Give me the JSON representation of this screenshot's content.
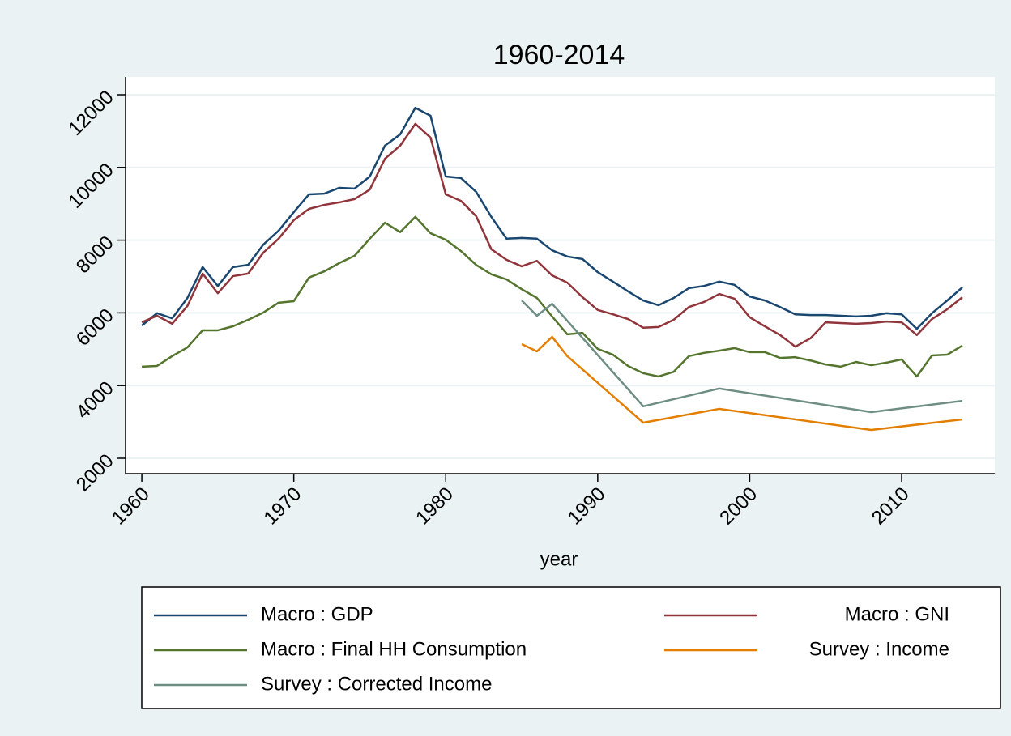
{
  "chart_data": {
    "type": "line",
    "title": "1960-2014",
    "x_label": "year",
    "x": [
      1960,
      1961,
      1962,
      1963,
      1964,
      1965,
      1966,
      1967,
      1968,
      1969,
      1970,
      1971,
      1972,
      1973,
      1974,
      1975,
      1976,
      1977,
      1978,
      1979,
      1980,
      1981,
      1982,
      1983,
      1984,
      1985,
      1986,
      1987,
      1988,
      1989,
      1990,
      1991,
      1992,
      1993,
      1994,
      1995,
      1996,
      1997,
      1998,
      1999,
      2000,
      2001,
      2002,
      2003,
      2004,
      2005,
      2006,
      2007,
      2008,
      2009,
      2010,
      2011,
      2012,
      2013,
      2014
    ],
    "series": [
      {
        "name": "Macro : GDP",
        "color": "#1a476f",
        "values": [
          5650,
          5990,
          5850,
          6410,
          7260,
          6740,
          7260,
          7320,
          7880,
          8260,
          8770,
          9260,
          9280,
          9440,
          9420,
          9750,
          10600,
          10910,
          11640,
          11420,
          9750,
          9710,
          9330,
          8640,
          8040,
          8060,
          8040,
          7720,
          7550,
          7480,
          7120,
          6860,
          6590,
          6340,
          6210,
          6410,
          6680,
          6740,
          6860,
          6770,
          6450,
          6340,
          6160,
          5960,
          5940,
          5940,
          5920,
          5900,
          5920,
          5990,
          5960,
          5560,
          5990,
          6340,
          6700
        ]
      },
      {
        "name": "Macro : GNI",
        "color": "#90353b",
        "values": [
          5740,
          5920,
          5700,
          6190,
          7080,
          6540,
          7010,
          7080,
          7660,
          8040,
          8550,
          8860,
          8970,
          9040,
          9130,
          9390,
          10240,
          10600,
          11200,
          10820,
          9260,
          9080,
          8660,
          7750,
          7460,
          7280,
          7430,
          7030,
          6830,
          6430,
          6080,
          5960,
          5830,
          5590,
          5610,
          5810,
          6160,
          6300,
          6520,
          6390,
          5880,
          5630,
          5390,
          5070,
          5300,
          5740,
          5720,
          5700,
          5720,
          5760,
          5740,
          5390,
          5830,
          6100,
          6430
        ]
      },
      {
        "name": "Macro : Final HH Consumption",
        "color": "#55752f",
        "values": [
          4520,
          4540,
          4810,
          5050,
          5520,
          5520,
          5630,
          5810,
          6010,
          6280,
          6320,
          6970,
          7140,
          7370,
          7570,
          8040,
          8480,
          8220,
          8640,
          8190,
          8010,
          7700,
          7320,
          7060,
          6920,
          6650,
          6410,
          5900,
          5410,
          5450,
          5010,
          4850,
          4540,
          4340,
          4250,
          4380,
          4810,
          4900,
          4960,
          5030,
          4920,
          4920,
          4760,
          4780,
          4690,
          4580,
          4520,
          4650,
          4560,
          4630,
          4720,
          4250,
          4830,
          4850,
          5100
        ]
      },
      {
        "name": "Survey : Income",
        "color": "#e37e00",
        "x": [
          1985,
          1986,
          1987,
          1988,
          1993,
          1998,
          2008,
          2014
        ],
        "values": [
          5140,
          4940,
          5340,
          4810,
          2980,
          3360,
          2780,
          3070
        ]
      },
      {
        "name": "Survey : Corrected Income",
        "color": "#6e8e84",
        "x": [
          1985,
          1986,
          1987,
          1993,
          1998,
          2008,
          2014
        ],
        "values": [
          6340,
          5920,
          6250,
          3430,
          3920,
          3270,
          3580
        ]
      }
    ],
    "xlim": [
      1958.93,
      2016.13
    ],
    "xticks": [
      1960,
      1970,
      1980,
      1990,
      2000,
      2010
    ],
    "ylim": [
      1577,
      12490
    ],
    "yticks": [
      2000,
      4000,
      6000,
      8000,
      10000,
      12000
    ],
    "grid": true
  }
}
